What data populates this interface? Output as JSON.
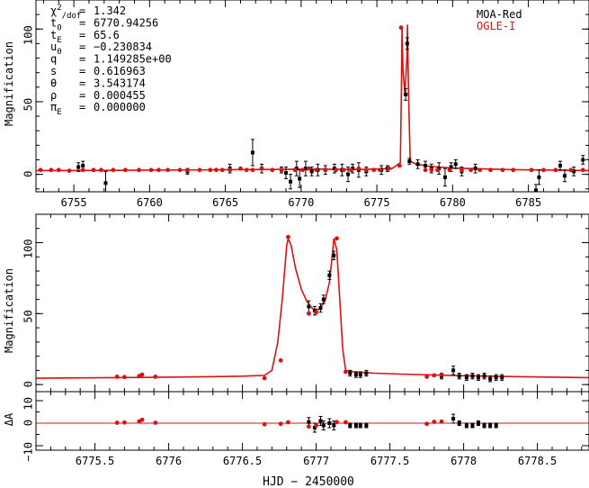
{
  "chart_data": [
    {
      "type": "line",
      "panel": "overview",
      "ylabel": "Magnification",
      "xlim": [
        6752.5,
        6789.0
      ],
      "ylim": [
        -12,
        120
      ],
      "x_ticks": [
        6755,
        6760,
        6765,
        6770,
        6775,
        6780,
        6785
      ],
      "x_tick_labels": [
        "6755",
        "6760",
        "6765",
        "6770",
        "6775",
        "6780",
        "6785"
      ],
      "y_ticks": [
        0,
        50,
        100
      ],
      "y_tick_labels": [
        "0",
        "50",
        "100"
      ],
      "legend": {
        "placement": "top-right",
        "entries": [
          "MOA-Red",
          "OGLE-I"
        ]
      },
      "params": [
        {
          "sym": "χ",
          "sup": "2",
          "sub": "/dof",
          "eq": "=",
          "value": "1.342"
        },
        {
          "sym": "t",
          "sup": "",
          "sub": "0",
          "eq": "=",
          "value": "6770.94256"
        },
        {
          "sym": "t",
          "sup": "",
          "sub": "E",
          "eq": "=",
          "value": "65.6"
        },
        {
          "sym": "u",
          "sup": "",
          "sub": "0",
          "eq": "=",
          "value": "−0.230834"
        },
        {
          "sym": "q",
          "sup": "",
          "sub": "",
          "eq": "=",
          "value": "1.149285e+00"
        },
        {
          "sym": "s",
          "sup": "",
          "sub": "",
          "eq": "=",
          "value": "0.616963"
        },
        {
          "sym": "θ",
          "sup": "",
          "sub": "",
          "eq": "=",
          "value": "3.543174"
        },
        {
          "sym": "ρ",
          "sup": "",
          "sub": "",
          "eq": "=",
          "value": "0.000455"
        },
        {
          "sym": "π",
          "sup": "",
          "sub": "E",
          "eq": "=",
          "value": "0.000000"
        }
      ],
      "model": [
        [
          6752.5,
          2.6
        ],
        [
          6756,
          2.7
        ],
        [
          6760,
          2.9
        ],
        [
          6764,
          3.1
        ],
        [
          6768,
          3.4
        ],
        [
          6770.94,
          3.6
        ],
        [
          6774,
          3.4
        ],
        [
          6776,
          4.0
        ],
        [
          6776.55,
          8
        ],
        [
          6776.62,
          60
        ],
        [
          6776.66,
          102
        ],
        [
          6776.72,
          72
        ],
        [
          6776.85,
          55
        ],
        [
          6776.98,
          80
        ],
        [
          6777.02,
          103
        ],
        [
          6777.08,
          60
        ],
        [
          6777.2,
          9
        ],
        [
          6777.6,
          7
        ],
        [
          6778.5,
          5.5
        ],
        [
          6780,
          4.3
        ],
        [
          6784,
          3.2
        ],
        [
          6789,
          2.6
        ]
      ],
      "series": [
        {
          "name": "MOA-Red",
          "color": "#000000",
          "points": [
            [
              6755.3,
              5,
              3
            ],
            [
              6755.6,
              6,
              3
            ],
            [
              6757.1,
              -6,
              8
            ],
            [
              6762.5,
              2,
              2
            ],
            [
              6765.3,
              4,
              3
            ],
            [
              6766.8,
              15,
              9
            ],
            [
              6767.4,
              4,
              3
            ],
            [
              6768.7,
              3,
              2
            ],
            [
              6769.0,
              1,
              4
            ],
            [
              6769.3,
              -5,
              5
            ],
            [
              6769.7,
              4,
              5
            ],
            [
              6769.9,
              -3,
              6
            ],
            [
              6770.3,
              4,
              5
            ],
            [
              6770.7,
              2,
              3
            ],
            [
              6771.1,
              3,
              4
            ],
            [
              6771.6,
              3,
              3
            ],
            [
              6772.2,
              4,
              3
            ],
            [
              6772.7,
              3,
              4
            ],
            [
              6773.1,
              0,
              5
            ],
            [
              6773.4,
              4,
              3
            ],
            [
              6773.8,
              3,
              5
            ],
            [
              6774.3,
              2,
              3
            ],
            [
              6775.3,
              3,
              3
            ],
            [
              6775.7,
              4,
              2
            ],
            [
              6776.9,
              55,
              4
            ],
            [
              6777.0,
              90,
              4
            ],
            [
              6777.15,
              9,
              2
            ],
            [
              6777.7,
              7,
              3
            ],
            [
              6778.2,
              6,
              3
            ],
            [
              6778.6,
              4,
              3
            ],
            [
              6779.1,
              4,
              4
            ],
            [
              6779.5,
              -2,
              6
            ],
            [
              6779.9,
              5,
              3
            ],
            [
              6780.2,
              7,
              3
            ],
            [
              6780.6,
              2,
              3
            ],
            [
              6781.5,
              4,
              3
            ],
            [
              6785.5,
              -11,
              4
            ],
            [
              6785.7,
              -2,
              5
            ],
            [
              6787.1,
              6,
              3
            ],
            [
              6787.4,
              -1,
              4
            ],
            [
              6788.0,
              2,
              3
            ],
            [
              6788.6,
              10,
              3
            ]
          ]
        },
        {
          "name": "OGLE-I",
          "color": "#dd1111",
          "points": [
            [
              6752.8,
              3
            ],
            [
              6753.5,
              3
            ],
            [
              6754.0,
              3
            ],
            [
              6754.7,
              2.5
            ],
            [
              6755.6,
              3
            ],
            [
              6756.3,
              3
            ],
            [
              6756.8,
              3
            ],
            [
              6757.6,
              3
            ],
            [
              6758.4,
              3
            ],
            [
              6759.3,
              3
            ],
            [
              6760.1,
              3
            ],
            [
              6760.6,
              3
            ],
            [
              6761.2,
              3
            ],
            [
              6762.0,
              3
            ],
            [
              6762.5,
              3
            ],
            [
              6763.3,
              3
            ],
            [
              6764.0,
              3
            ],
            [
              6764.4,
              3
            ],
            [
              6764.8,
              3
            ],
            [
              6765.3,
              3
            ],
            [
              6766.0,
              4
            ],
            [
              6766.4,
              3
            ],
            [
              6766.8,
              3
            ],
            [
              6767.4,
              4
            ],
            [
              6768.1,
              3
            ],
            [
              6768.7,
              3
            ],
            [
              6769.6,
              3
            ],
            [
              6770.1,
              3
            ],
            [
              6770.5,
              4
            ],
            [
              6771.0,
              3
            ],
            [
              6771.6,
              3
            ],
            [
              6772.3,
              3
            ],
            [
              6772.8,
              3
            ],
            [
              6773.3,
              3
            ],
            [
              6773.8,
              4
            ],
            [
              6774.3,
              3
            ],
            [
              6774.8,
              3
            ],
            [
              6775.2,
              3
            ],
            [
              6775.8,
              4
            ],
            [
              6776.5,
              6
            ],
            [
              6776.6,
              101
            ],
            [
              6778.2,
              3
            ],
            [
              6778.6,
              3
            ],
            [
              6779.0,
              3
            ],
            [
              6779.8,
              3
            ],
            [
              6780.6,
              3
            ],
            [
              6781.2,
              3
            ],
            [
              6781.8,
              3
            ],
            [
              6782.5,
              3
            ],
            [
              6783.3,
              3
            ],
            [
              6784.0,
              3
            ],
            [
              6785.2,
              3
            ],
            [
              6786.0,
              3
            ],
            [
              6786.8,
              3
            ],
            [
              6787.8,
              3
            ],
            [
              6788.6,
              3
            ]
          ]
        }
      ]
    },
    {
      "type": "line",
      "panel": "zoom",
      "ylabel": "Magnification",
      "xlim": [
        6775.1,
        6778.85
      ],
      "ylim": [
        -5,
        120
      ],
      "y_ticks": [
        0,
        50,
        100
      ],
      "y_tick_labels": [
        "0",
        "50",
        "100"
      ],
      "model": [
        [
          6775.1,
          4.5
        ],
        [
          6775.5,
          4.8
        ],
        [
          6775.9,
          5.1
        ],
        [
          6776.2,
          5.4
        ],
        [
          6776.5,
          5.9
        ],
        [
          6776.65,
          6.5
        ],
        [
          6776.7,
          10
        ],
        [
          6776.74,
          30
        ],
        [
          6776.77,
          60
        ],
        [
          6776.79,
          85
        ],
        [
          6776.8,
          98
        ],
        [
          6776.81,
          103
        ],
        [
          6776.83,
          98
        ],
        [
          6776.86,
          82
        ],
        [
          6776.9,
          67
        ],
        [
          6776.94,
          58
        ],
        [
          6776.98,
          53
        ],
        [
          6777.02,
          53
        ],
        [
          6777.06,
          59
        ],
        [
          6777.09,
          72
        ],
        [
          6777.11,
          92
        ],
        [
          6777.12,
          103
        ],
        [
          6777.14,
          95
        ],
        [
          6777.16,
          60
        ],
        [
          6777.18,
          25
        ],
        [
          6777.2,
          10
        ],
        [
          6777.25,
          9
        ],
        [
          6777.4,
          8
        ],
        [
          6777.6,
          7.3
        ],
        [
          6778.0,
          6.2
        ],
        [
          6778.4,
          5.5
        ],
        [
          6778.85,
          4.9
        ]
      ],
      "series": [
        {
          "name": "MOA-Red",
          "color": "#000000",
          "points": [
            [
              6776.95,
              55,
              4
            ],
            [
              6776.99,
              52,
              3
            ],
            [
              6777.03,
              54,
              3
            ],
            [
              6777.05,
              60,
              3
            ],
            [
              6777.09,
              77,
              3
            ],
            [
              6777.12,
              91,
              3
            ],
            [
              6777.23,
              8,
              2
            ],
            [
              6777.27,
              7,
              2
            ],
            [
              6777.3,
              7,
              2
            ],
            [
              6777.34,
              8,
              2
            ],
            [
              6777.85,
              6,
              2
            ],
            [
              6777.93,
              10,
              3
            ],
            [
              6777.97,
              6,
              2
            ],
            [
              6778.02,
              5,
              2
            ],
            [
              6778.06,
              6,
              2
            ],
            [
              6778.1,
              5,
              2
            ],
            [
              6778.14,
              6,
              2
            ],
            [
              6778.18,
              4,
              2
            ],
            [
              6778.22,
              5,
              2
            ],
            [
              6778.26,
              5,
              2
            ]
          ]
        },
        {
          "name": "OGLE-I",
          "color": "#dd1111",
          "points": [
            [
              6775.65,
              5.5
            ],
            [
              6775.7,
              5.3
            ],
            [
              6775.8,
              6.0
            ],
            [
              6775.82,
              7.0
            ],
            [
              6775.91,
              5.5
            ],
            [
              6776.65,
              4.5
            ],
            [
              6776.76,
              17
            ],
            [
              6776.81,
              104
            ],
            [
              6776.95,
              50
            ],
            [
              6777.0,
              51
            ],
            [
              6777.14,
              103
            ],
            [
              6777.2,
              9
            ],
            [
              6777.75,
              5.5
            ],
            [
              6777.8,
              6.5
            ],
            [
              6777.85,
              7
            ]
          ]
        }
      ]
    },
    {
      "type": "scatter",
      "panel": "residuals",
      "ylabel": "ΔA",
      "xlabel": "HJD − 2450000",
      "xlim": [
        6775.1,
        6778.85
      ],
      "ylim": [
        -12,
        14
      ],
      "x_ticks": [
        6775.5,
        6776,
        6776.5,
        6777,
        6777.5,
        6778,
        6778.5
      ],
      "x_tick_labels": [
        "6775.5",
        "6776",
        "6776.5",
        "6777",
        "6777.5",
        "6778",
        "6778.5"
      ],
      "y_ticks": [
        10,
        0,
        -10
      ],
      "y_tick_labels": [
        "10",
        "0",
        "−10"
      ],
      "series": [
        {
          "name": "MOA-Red",
          "color": "#000000",
          "points": [
            [
              6776.95,
              0.5,
              2
            ],
            [
              6776.99,
              -2,
              2
            ],
            [
              6777.03,
              1,
              2
            ],
            [
              6777.05,
              -1,
              2
            ],
            [
              6777.09,
              0,
              2
            ],
            [
              6777.12,
              -1,
              2
            ],
            [
              6777.23,
              -1,
              1
            ],
            [
              6777.27,
              -1,
              1
            ],
            [
              6777.3,
              -1,
              1
            ],
            [
              6777.34,
              -1,
              1
            ],
            [
              6777.93,
              2,
              2
            ],
            [
              6777.97,
              0,
              1
            ],
            [
              6778.02,
              -1,
              1
            ],
            [
              6778.06,
              -1,
              1
            ],
            [
              6778.1,
              0,
              1
            ],
            [
              6778.14,
              -1,
              1
            ],
            [
              6778.18,
              -1,
              1
            ],
            [
              6778.22,
              -1,
              1
            ]
          ]
        },
        {
          "name": "OGLE-I",
          "color": "#dd1111",
          "points": [
            [
              6775.65,
              0.2
            ],
            [
              6775.7,
              0.3
            ],
            [
              6775.8,
              0.8
            ],
            [
              6775.82,
              1.5
            ],
            [
              6775.91,
              0.2
            ],
            [
              6776.65,
              -0.5
            ],
            [
              6776.76,
              -0.3
            ],
            [
              6776.81,
              0.4
            ],
            [
              6776.95,
              -1.5
            ],
            [
              6777.0,
              -1
            ],
            [
              6777.14,
              0.5
            ],
            [
              6777.2,
              0.4
            ],
            [
              6777.75,
              -0.3
            ],
            [
              6777.8,
              0.6
            ],
            [
              6777.85,
              0.7
            ]
          ]
        }
      ]
    }
  ]
}
